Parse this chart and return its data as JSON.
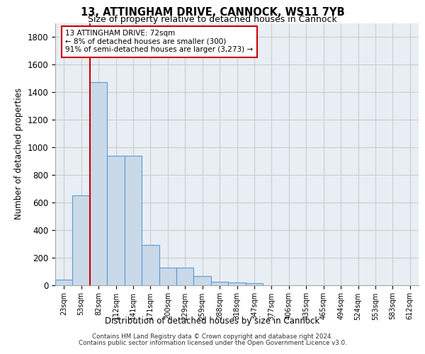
{
  "title_line1": "13, ATTINGHAM DRIVE, CANNOCK, WS11 7YB",
  "title_line2": "Size of property relative to detached houses in Cannock",
  "xlabel": "Distribution of detached houses by size in Cannock",
  "ylabel": "Number of detached properties",
  "categories": [
    "23sqm",
    "53sqm",
    "82sqm",
    "112sqm",
    "141sqm",
    "171sqm",
    "200sqm",
    "229sqm",
    "259sqm",
    "288sqm",
    "318sqm",
    "347sqm",
    "377sqm",
    "406sqm",
    "435sqm",
    "465sqm",
    "494sqm",
    "524sqm",
    "553sqm",
    "583sqm",
    "612sqm"
  ],
  "values": [
    38,
    650,
    1470,
    935,
    935,
    290,
    125,
    125,
    63,
    25,
    20,
    15,
    0,
    0,
    0,
    0,
    0,
    0,
    0,
    0,
    0
  ],
  "bar_color": "#c9d9e8",
  "bar_edge_color": "#5b9bd5",
  "vline_x": 1.5,
  "vline_color": "#cc0000",
  "annotation_text": "13 ATTINGHAM DRIVE: 72sqm\n← 8% of detached houses are smaller (300)\n91% of semi-detached houses are larger (3,273) →",
  "annotation_box_facecolor": "#ffffff",
  "annotation_box_edgecolor": "#cc0000",
  "ylim": [
    0,
    1900
  ],
  "yticks": [
    0,
    200,
    400,
    600,
    800,
    1000,
    1200,
    1400,
    1600,
    1800
  ],
  "grid_color": "#cccccc",
  "bg_color": "#e8eef4",
  "footer1": "Contains HM Land Registry data © Crown copyright and database right 2024.",
  "footer2": "Contains public sector information licensed under the Open Government Licence v3.0."
}
